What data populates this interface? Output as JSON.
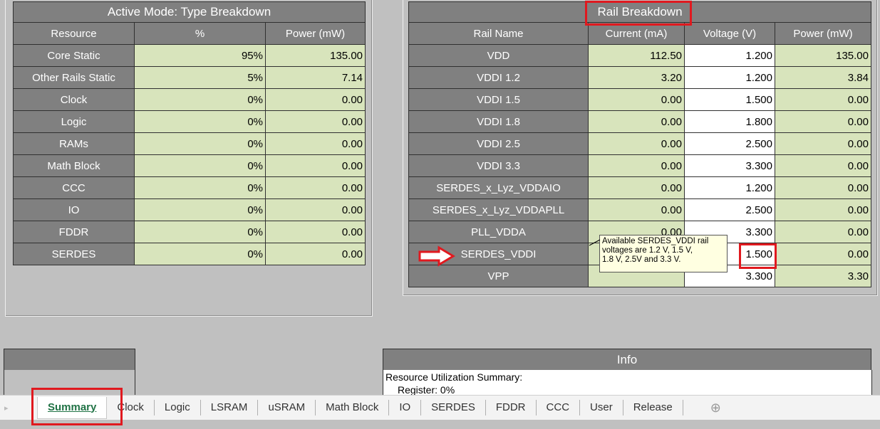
{
  "type_breakdown": {
    "title": "Active Mode: Type Breakdown",
    "headers": [
      "Resource",
      "%",
      "Power (mW)"
    ],
    "rows": [
      [
        "Core Static",
        "95%",
        "135.00"
      ],
      [
        "Other Rails Static",
        "5%",
        "7.14"
      ],
      [
        "Clock",
        "0%",
        "0.00"
      ],
      [
        "Logic",
        "0%",
        "0.00"
      ],
      [
        "RAMs",
        "0%",
        "0.00"
      ],
      [
        "Math Block",
        "0%",
        "0.00"
      ],
      [
        "CCC",
        "0%",
        "0.00"
      ],
      [
        "IO",
        "0%",
        "0.00"
      ],
      [
        "FDDR",
        "0%",
        "0.00"
      ],
      [
        "SERDES",
        "0%",
        "0.00"
      ]
    ]
  },
  "rail_breakdown": {
    "title": "Rail Breakdown",
    "headers": [
      "Rail Name",
      "Current (mA)",
      "Voltage (V)",
      "Power (mW)"
    ],
    "rows": [
      [
        "VDD",
        "112.50",
        "1.200",
        "135.00"
      ],
      [
        "VDDI 1.2",
        "3.20",
        "1.200",
        "3.84"
      ],
      [
        "VDDI 1.5",
        "0.00",
        "1.500",
        "0.00"
      ],
      [
        "VDDI 1.8",
        "0.00",
        "1.800",
        "0.00"
      ],
      [
        "VDDI 2.5",
        "0.00",
        "2.500",
        "0.00"
      ],
      [
        "VDDI 3.3",
        "0.00",
        "3.300",
        "0.00"
      ],
      [
        "SERDES_x_Lyz_VDDAIO",
        "0.00",
        "1.200",
        "0.00"
      ],
      [
        "SERDES_x_Lyz_VDDAPLL",
        "0.00",
        "2.500",
        "0.00"
      ],
      [
        "PLL_VDDA",
        "0.00",
        "3.300",
        "0.00"
      ],
      [
        "SERDES_VDDI",
        "",
        "1.500",
        "0.00"
      ],
      [
        "VPP",
        "",
        "3.300",
        "3.30"
      ]
    ]
  },
  "comment": {
    "lines": [
      "Available SERDES_VDDI rail",
      "voltages are 1.2 V, 1.5 V,",
      "1.8 V,  2.5V and 3.3 V."
    ]
  },
  "info": {
    "title": "Info",
    "lines": [
      "Resource Utilization Summary:",
      "Register: 0%"
    ]
  },
  "tabs": [
    "Summary",
    "Clock",
    "Logic",
    "LSRAM",
    "uSRAM",
    "Math Block",
    "IO",
    "SERDES",
    "FDDR",
    "CCC",
    "User",
    "Release"
  ]
}
